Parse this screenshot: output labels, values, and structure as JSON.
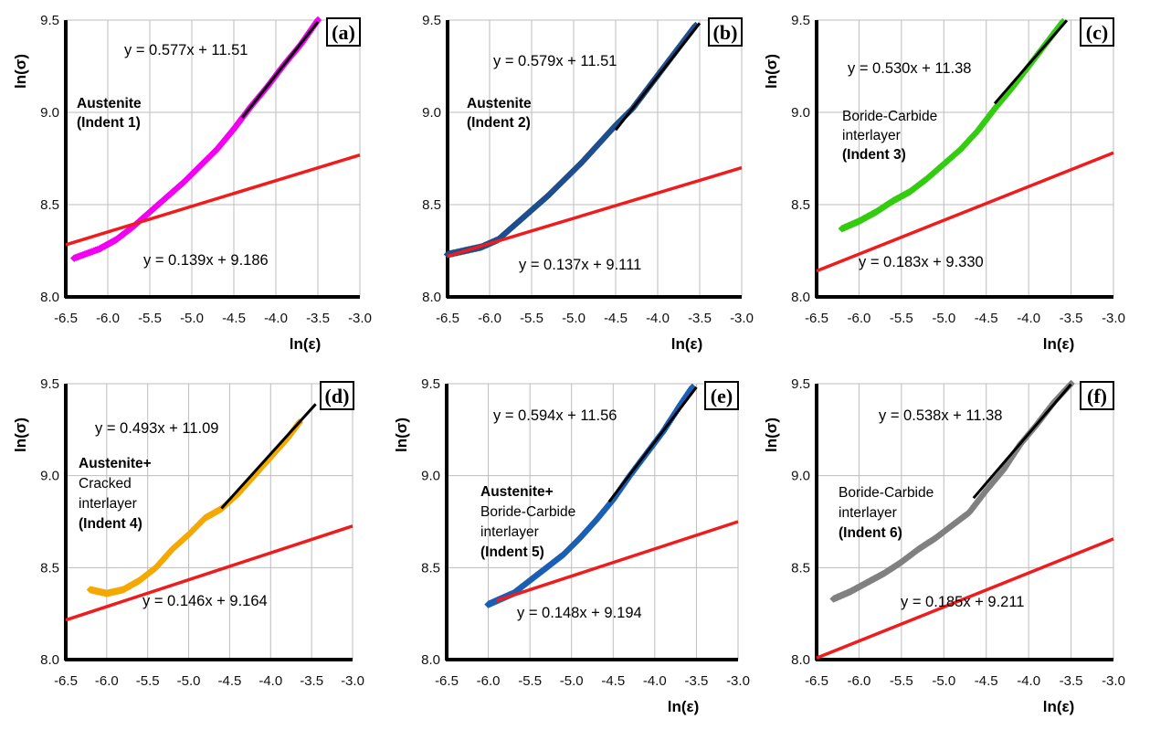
{
  "chart_data": [
    {
      "type": "scatter",
      "panel_label": "(a)",
      "xlabel": "ln(ε)",
      "ylabel": "ln(σ)",
      "xlim": [
        -6.5,
        -3.0
      ],
      "ylim": [
        8.0,
        9.5
      ],
      "x_ticks": [
        -6.5,
        -6.0,
        -5.5,
        -5.0,
        -4.5,
        -4.0,
        -3.5,
        -3.0
      ],
      "y_ticks": [
        8.0,
        8.5,
        9.0,
        9.5
      ],
      "x_tick_labels": [
        "-6.5",
        "-6.0",
        "-5.5",
        "-5.0",
        "-4.5",
        "-4.0",
        "-3.5",
        "-3.0"
      ],
      "y_tick_labels": [
        "8.0",
        "8.5",
        "9.0",
        "9.5"
      ],
      "grid": true,
      "point_color": "#f200f2",
      "region_label": [
        "Austenite",
        "(Indent 1)"
      ],
      "region_bold": [
        true,
        true
      ],
      "series": [
        {
          "x": [
            -6.4,
            -6.1,
            -5.9,
            -5.7,
            -5.5,
            -5.3,
            -5.1,
            -4.9,
            -4.7,
            -4.5,
            -4.3,
            -4.1,
            -3.9,
            -3.7,
            -3.5
          ],
          "y": [
            8.21,
            8.26,
            8.31,
            8.38,
            8.46,
            8.54,
            8.62,
            8.71,
            8.8,
            8.91,
            9.03,
            9.14,
            9.26,
            9.37,
            9.5
          ]
        }
      ],
      "fits": [
        {
          "equation": "y = 0.577x + 11.51",
          "slope": 0.577,
          "intercept": 11.51,
          "x_range": [
            -4.4,
            -3.5
          ],
          "color": "#000000"
        },
        {
          "equation": "y = 0.139x + 9.186",
          "slope": 0.139,
          "intercept": 9.186,
          "x_range": [
            -6.5,
            -3.0
          ],
          "color": "#ee1c1c"
        }
      ]
    },
    {
      "type": "scatter",
      "panel_label": "(b)",
      "xlabel": "ln(ε)",
      "ylabel": "",
      "xlim": [
        -6.5,
        -3.0
      ],
      "ylim": [
        8.0,
        9.5
      ],
      "x_ticks": [
        -6.5,
        -6.0,
        -5.5,
        -5.0,
        -4.5,
        -4.0,
        -3.5,
        -3.0
      ],
      "y_ticks": [
        8.0,
        8.5,
        9.0,
        9.5
      ],
      "x_tick_labels": [
        "-6.5",
        "-6.0",
        "-5.5",
        "-5.0",
        "-4.5",
        "-4.0",
        "-3.5",
        "-3.0"
      ],
      "y_tick_labels": [
        "8.0",
        "8.5",
        "9.0",
        "9.5"
      ],
      "grid": true,
      "point_color": "#1f4e8c",
      "region_label": [
        "Austenite",
        "(Indent 2)"
      ],
      "region_bold": [
        true,
        true
      ],
      "series": [
        {
          "x": [
            -6.5,
            -6.3,
            -6.1,
            -5.9,
            -5.7,
            -5.5,
            -5.3,
            -5.1,
            -4.9,
            -4.7,
            -4.5,
            -4.3,
            -4.1,
            -3.9,
            -3.7,
            -3.55
          ],
          "y": [
            8.23,
            8.25,
            8.27,
            8.31,
            8.39,
            8.47,
            8.55,
            8.64,
            8.73,
            8.83,
            8.93,
            9.02,
            9.14,
            9.26,
            9.38,
            9.47
          ]
        }
      ],
      "fits": [
        {
          "equation": "y = 0.579x + 11.51",
          "slope": 0.579,
          "intercept": 11.51,
          "x_range": [
            -4.5,
            -3.5
          ],
          "color": "#000000"
        },
        {
          "equation": "y = 0.137x + 9.111",
          "slope": 0.137,
          "intercept": 9.111,
          "x_range": [
            -6.5,
            -3.0
          ],
          "color": "#ee1c1c"
        }
      ]
    },
    {
      "type": "scatter",
      "panel_label": "(c)",
      "xlabel": "ln(ε)",
      "ylabel": "ln(σ)",
      "xlim": [
        -6.5,
        -3.0
      ],
      "ylim": [
        8.0,
        9.5
      ],
      "x_ticks": [
        -6.5,
        -6.0,
        -5.5,
        -5.0,
        -4.5,
        -4.0,
        -3.5,
        -3.0
      ],
      "y_ticks": [
        8.0,
        8.5,
        9.0,
        9.5
      ],
      "x_tick_labels": [
        "-6.5",
        "-6.0",
        "-5.5",
        "-5.0",
        "-4.5",
        "-4.0",
        "-3.5",
        "-3.0"
      ],
      "y_tick_labels": [
        "8.0",
        "8.5",
        "9.0",
        "9.5"
      ],
      "grid": true,
      "point_color": "#33cc10",
      "region_label": [
        "Boride-Carbide",
        "interlayer",
        "(Indent 3)"
      ],
      "region_bold": [
        false,
        false,
        true
      ],
      "series": [
        {
          "x": [
            -6.2,
            -6.0,
            -5.8,
            -5.6,
            -5.4,
            -5.2,
            -5.0,
            -4.8,
            -4.6,
            -4.4,
            -4.2,
            -4.0,
            -3.8,
            -3.6
          ],
          "y": [
            8.37,
            8.41,
            8.46,
            8.52,
            8.57,
            8.64,
            8.72,
            8.8,
            8.9,
            9.02,
            9.13,
            9.25,
            9.37,
            9.49
          ]
        }
      ],
      "fits": [
        {
          "equation": "y = 0.530x + 11.38",
          "slope": 0.53,
          "intercept": 11.38,
          "x_range": [
            -4.4,
            -3.55
          ],
          "color": "#000000"
        },
        {
          "equation": "y = 0.183x + 9.330",
          "slope": 0.183,
          "intercept": 9.33,
          "x_range": [
            -6.5,
            -3.0
          ],
          "color": "#ee1c1c"
        }
      ]
    },
    {
      "type": "scatter",
      "panel_label": "(d)",
      "xlabel": "",
      "ylabel": "ln(σ)",
      "xlim": [
        -6.5,
        -3.0
      ],
      "ylim": [
        8.0,
        9.5
      ],
      "x_ticks": [
        -6.5,
        -6.0,
        -5.5,
        -5.0,
        -4.5,
        -4.0,
        -3.5,
        -3.0
      ],
      "y_ticks": [
        8.0,
        8.5,
        9.0,
        9.5
      ],
      "x_tick_labels": [
        "-6.5",
        "-6.0",
        "-5.5",
        "-5.0",
        "-4.5",
        "-4.0",
        "-3.5",
        "-3.0"
      ],
      "y_tick_labels": [
        "8.0",
        "8.5",
        "9.0",
        "9.5"
      ],
      "grid": true,
      "point_color": "#f5a800",
      "region_label": [
        "Austenite+",
        "Cracked",
        "interlayer",
        "(Indent 4)"
      ],
      "region_bold": [
        true,
        false,
        false,
        true
      ],
      "series": [
        {
          "x": [
            -6.2,
            -6.0,
            -5.8,
            -5.6,
            -5.4,
            -5.2,
            -5.0,
            -4.8,
            -4.6,
            -4.4,
            -4.2,
            -4.0,
            -3.8,
            -3.65
          ],
          "y": [
            8.38,
            8.36,
            8.38,
            8.43,
            8.5,
            8.6,
            8.68,
            8.77,
            8.82,
            8.9,
            9.0,
            9.1,
            9.2,
            9.29
          ]
        }
      ],
      "fits": [
        {
          "equation": "y = 0.493x + 11.09",
          "slope": 0.493,
          "intercept": 11.09,
          "x_range": [
            -4.6,
            -3.45
          ],
          "color": "#000000"
        },
        {
          "equation": "y = 0.146x + 9.164",
          "slope": 0.146,
          "intercept": 9.164,
          "x_range": [
            -6.5,
            -3.0
          ],
          "color": "#ee1c1c"
        }
      ]
    },
    {
      "type": "scatter",
      "panel_label": "(e)",
      "xlabel": "ln(ε)",
      "ylabel": "ln(σ)",
      "xlim": [
        -6.5,
        -3.0
      ],
      "ylim": [
        8.0,
        9.5
      ],
      "x_ticks": [
        -6.5,
        -6.0,
        -5.5,
        -5.0,
        -4.5,
        -4.0,
        -3.5,
        -3.0
      ],
      "y_ticks": [
        8.0,
        8.5,
        9.0,
        9.5
      ],
      "x_tick_labels": [
        "-6.5",
        "-6.0",
        "-5.5",
        "-5.0",
        "-4.5",
        "-4.0",
        "-3.5",
        "-3.0"
      ],
      "y_tick_labels": [
        "8.0",
        "8.5",
        "9.0",
        "9.5"
      ],
      "grid": true,
      "point_color": "#1a5fb4",
      "region_label": [
        "Austenite+",
        "Boride-Carbide",
        "interlayer",
        "(Indent 5)"
      ],
      "region_bold": [
        true,
        false,
        false,
        true
      ],
      "series": [
        {
          "x": [
            -6.0,
            -5.85,
            -5.7,
            -5.5,
            -5.3,
            -5.1,
            -4.9,
            -4.7,
            -4.5,
            -4.3,
            -4.1,
            -3.9,
            -3.7,
            -3.55
          ],
          "y": [
            8.3,
            8.33,
            8.36,
            8.43,
            8.5,
            8.57,
            8.66,
            8.76,
            8.87,
            9.0,
            9.12,
            9.24,
            9.38,
            9.48
          ]
        }
      ],
      "fits": [
        {
          "equation": "y = 0.594x + 11.56",
          "slope": 0.594,
          "intercept": 11.56,
          "x_range": [
            -4.55,
            -3.5
          ],
          "color": "#000000"
        },
        {
          "equation": "y = 0.148x + 9.194",
          "slope": 0.148,
          "intercept": 9.194,
          "x_range": [
            -5.9,
            -3.0
          ],
          "color": "#ee1c1c"
        }
      ]
    },
    {
      "type": "scatter",
      "panel_label": "(f)",
      "xlabel": "ln(ε)",
      "ylabel": "ln(σ)",
      "xlim": [
        -6.5,
        -3.0
      ],
      "ylim": [
        8.0,
        9.5
      ],
      "x_ticks": [
        -6.5,
        -6.0,
        -5.5,
        -5.0,
        -4.5,
        -4.0,
        -3.5,
        -3.0
      ],
      "y_ticks": [
        8.0,
        8.5,
        9.0,
        9.5
      ],
      "x_tick_labels": [
        "-6.5",
        "-6.0",
        "-5.5",
        "-5.0",
        "-4.5",
        "-4.0",
        "-3.5",
        "-3.0"
      ],
      "y_tick_labels": [
        "8.0",
        "8.5",
        "9.0",
        "9.5"
      ],
      "grid": true,
      "point_color": "#808080",
      "region_label": [
        "Boride-Carbide",
        "interlayer",
        "(Indent 6)"
      ],
      "region_bold": [
        false,
        false,
        true
      ],
      "series": [
        {
          "x": [
            -6.3,
            -6.1,
            -5.9,
            -5.7,
            -5.5,
            -5.3,
            -5.1,
            -4.9,
            -4.7,
            -4.5,
            -4.3,
            -4.1,
            -3.9,
            -3.7,
            -3.5
          ],
          "y": [
            8.33,
            8.37,
            8.42,
            8.47,
            8.53,
            8.6,
            8.66,
            8.73,
            8.8,
            8.92,
            9.03,
            9.17,
            9.28,
            9.4,
            9.5
          ]
        }
      ],
      "fits": [
        {
          "equation": "y = 0.538x + 11.38",
          "slope": 0.538,
          "intercept": 11.38,
          "x_range": [
            -4.65,
            -3.5
          ],
          "color": "#000000"
        },
        {
          "equation": "y = 0.185x + 9.211",
          "slope": 0.185,
          "intercept": 9.211,
          "x_range": [
            -6.5,
            -3.0
          ],
          "color": "#ee1c1c"
        }
      ]
    }
  ]
}
